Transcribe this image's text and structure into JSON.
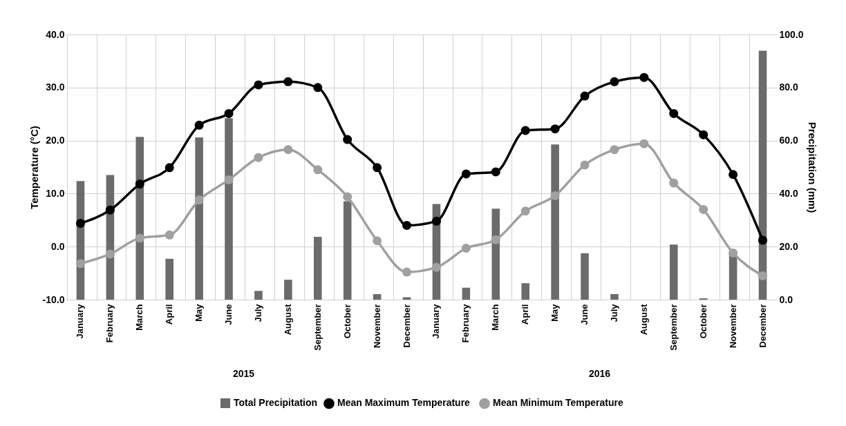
{
  "chart_data": {
    "type": "bar",
    "categories": [
      "January",
      "February",
      "March",
      "April",
      "May",
      "June",
      "July",
      "August",
      "September",
      "October",
      "November",
      "December",
      "January",
      "February",
      "March",
      "April",
      "May",
      "June",
      "July",
      "August",
      "September",
      "October",
      "November",
      "December"
    ],
    "series": [
      {
        "name": "Total Precipitation",
        "axis": "y2",
        "color": "#6b6b6b",
        "values": [
          44.7,
          47.0,
          61.4,
          15.4,
          61.2,
          68.4,
          3.3,
          7.5,
          23.7,
          37.1,
          2.1,
          0.9,
          36.1,
          4.5,
          34.3,
          6.2,
          58.5,
          17.5,
          2.1,
          null,
          20.8,
          0.5,
          17.0,
          93.9
        ]
      },
      {
        "name": "Mean Maximum Temperature",
        "type": "line",
        "color": "#000000",
        "values": [
          4.4,
          6.9,
          11.8,
          14.9,
          22.9,
          25.1,
          30.5,
          31.1,
          30.0,
          20.2,
          14.9,
          4.0,
          4.8,
          13.7,
          14.1,
          21.9,
          22.2,
          28.4,
          31.1,
          31.9,
          25.1,
          21.1,
          13.6,
          1.2
        ]
      },
      {
        "name": "Mean Minimum Temperature",
        "type": "line",
        "color": "#a0a0a0",
        "values": [
          -3.2,
          -1.4,
          1.6,
          2.2,
          8.8,
          12.6,
          16.8,
          18.3,
          14.5,
          9.4,
          1.1,
          -4.8,
          -3.9,
          -0.3,
          1.3,
          6.7,
          9.6,
          15.4,
          18.3,
          19.4,
          12.0,
          7.0,
          -1.2,
          -5.5
        ]
      }
    ],
    "ylabel": "Temperature (°C)",
    "y2label": "Precipitation (mm)",
    "ylim": [
      -10,
      40
    ],
    "yticks": [
      {
        "value": -10,
        "label": "-10.0"
      },
      {
        "value": 0,
        "label": "0.0"
      },
      {
        "value": 10,
        "label": "10.0"
      },
      {
        "value": 20,
        "label": "20.0"
      },
      {
        "value": 30,
        "label": "30.0"
      },
      {
        "value": 40,
        "label": "40.0"
      }
    ],
    "y2lim": [
      0,
      100
    ],
    "y2ticks": [
      {
        "value": 0,
        "label": "0.0"
      },
      {
        "value": 20,
        "label": "20.0"
      },
      {
        "value": 40,
        "label": "40.0"
      },
      {
        "value": 60,
        "label": "60.0"
      },
      {
        "value": 80,
        "label": "80.0"
      },
      {
        "value": 100,
        "label": "100.0"
      }
    ],
    "annotations": [
      "2015",
      "2016"
    ],
    "grid": true,
    "legend": "bottom",
    "marker": "circle",
    "line_style": "solid"
  }
}
